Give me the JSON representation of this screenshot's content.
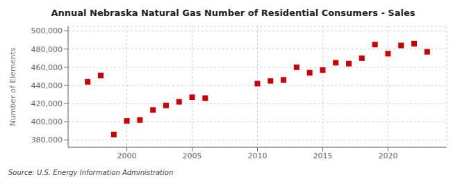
{
  "chart_data": {
    "type": "scatter",
    "title": "Annual Nebraska Natural Gas Number of Residential Consumers - Sales",
    "ylabel": "Number of Elements",
    "annotation": "Source: U.S. Energy Information Administration",
    "x": [
      1997,
      1998,
      1999,
      2000,
      2001,
      2002,
      2003,
      2004,
      2005,
      2006,
      2010,
      2011,
      2012,
      2013,
      2014,
      2015,
      2016,
      2017,
      2018,
      2019,
      2020,
      2021,
      2022,
      2023
    ],
    "values": [
      444000,
      451000,
      386000,
      401000,
      402000,
      413000,
      418000,
      422000,
      427000,
      426000,
      442000,
      445000,
      446000,
      460000,
      454000,
      457000,
      465000,
      464000,
      470000,
      485000,
      475000,
      484000,
      486000,
      477000
    ],
    "color": "#cc0000",
    "marker": "square",
    "xlim": [
      1995.5,
      2024.5
    ],
    "xticks": [
      2000,
      2005,
      2010,
      2015,
      2020
    ],
    "ylim": [
      372000,
      505000
    ],
    "yticks": [
      {
        "value": 380000,
        "label": "380,000"
      },
      {
        "value": 400000,
        "label": "400,000"
      },
      {
        "value": 420000,
        "label": "420,000"
      },
      {
        "value": 440000,
        "label": "440,000"
      },
      {
        "value": 460000,
        "label": "460,000"
      },
      {
        "value": 480000,
        "label": "480,000"
      },
      {
        "value": 500000,
        "label": "500,000"
      }
    ],
    "grid": true
  }
}
